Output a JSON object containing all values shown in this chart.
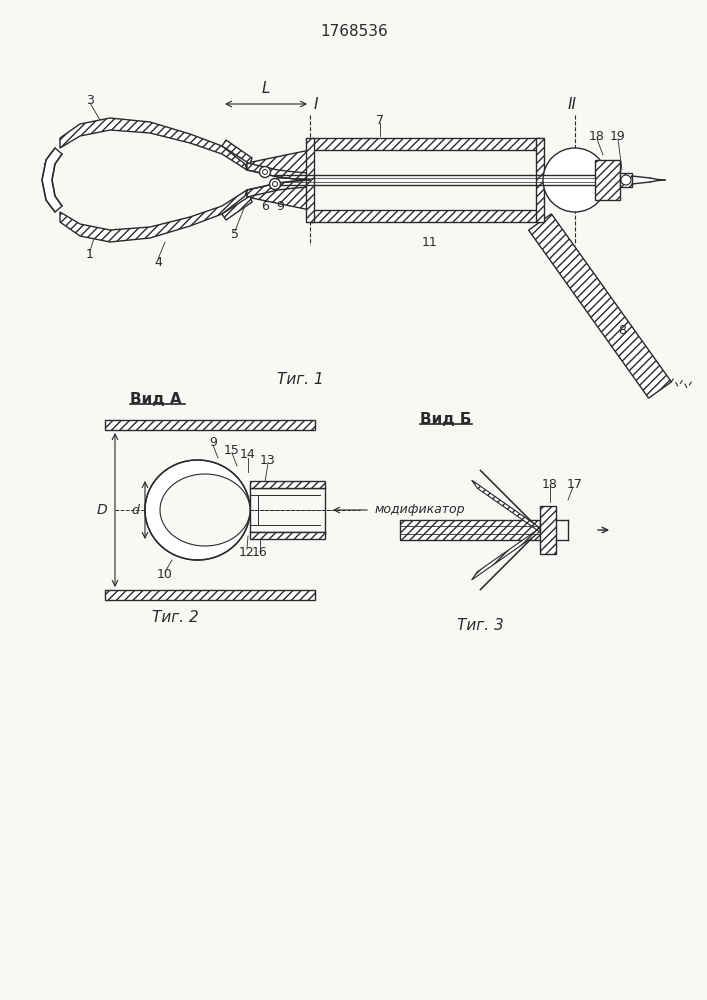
{
  "title": "1768536",
  "fig1_caption": "Τиг. 1",
  "fig2_caption": "Τиг. 2",
  "fig3_caption": "Τиг. 3",
  "vid_a_label": "Вид А",
  "vid_b_label": "Вид Б",
  "modifier_label": "модификатор",
  "bg_color": "#f8f8f5",
  "line_color": "#2a2a2a"
}
